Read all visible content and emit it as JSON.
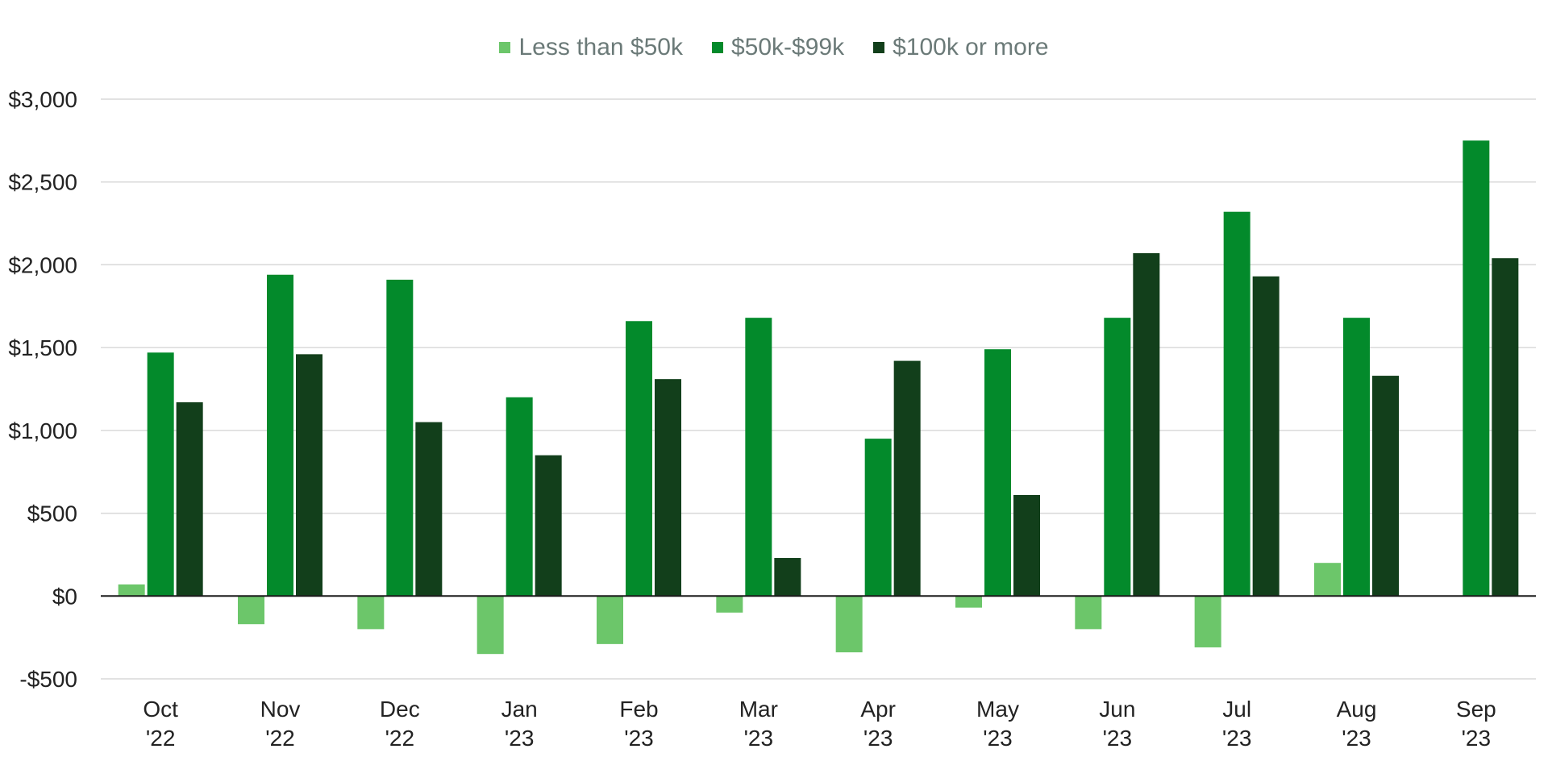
{
  "chart_data": {
    "type": "bar",
    "categories": [
      "Oct '22",
      "Nov '22",
      "Dec '22",
      "Jan '23",
      "Feb '23",
      "Mar '23",
      "Apr '23",
      "May '23",
      "Jun '23",
      "Jul '23",
      "Aug '23",
      "Sep '23"
    ],
    "category_lines": [
      [
        "Oct",
        "'22"
      ],
      [
        "Nov",
        "'22"
      ],
      [
        "Dec",
        "'22"
      ],
      [
        "Jan",
        "'23"
      ],
      [
        "Feb",
        "'23"
      ],
      [
        "Mar",
        "'23"
      ],
      [
        "Apr",
        "'23"
      ],
      [
        "May",
        "'23"
      ],
      [
        "Jun",
        "'23"
      ],
      [
        "Jul",
        "'23"
      ],
      [
        "Aug",
        "'23"
      ],
      [
        "Sep",
        "'23"
      ]
    ],
    "series": [
      {
        "name": "Less than $50k",
        "color": "#6cc66a",
        "values": [
          70,
          -170,
          -200,
          -350,
          -290,
          -100,
          -340,
          -70,
          -200,
          -310,
          200,
          0
        ]
      },
      {
        "name": "$50k-$99k",
        "color": "#038a2b",
        "values": [
          1470,
          1940,
          1910,
          1200,
          1660,
          1680,
          950,
          1490,
          1680,
          2320,
          1680,
          2750
        ]
      },
      {
        "name": "$100k or more",
        "color": "#123f1b",
        "values": [
          1170,
          1460,
          1050,
          850,
          1310,
          230,
          1420,
          610,
          2070,
          1930,
          1330,
          2040
        ]
      }
    ],
    "yticks": [
      -500,
      0,
      500,
      1000,
      1500,
      2000,
      2500,
      3000
    ],
    "ytick_labels": [
      "-$500",
      "$0",
      "$500",
      "$1,000",
      "$1,500",
      "$2,000",
      "$2,500",
      "$3,000"
    ],
    "ylim": [
      -500,
      3000
    ],
    "legend_position": "top-center",
    "grid": true
  }
}
